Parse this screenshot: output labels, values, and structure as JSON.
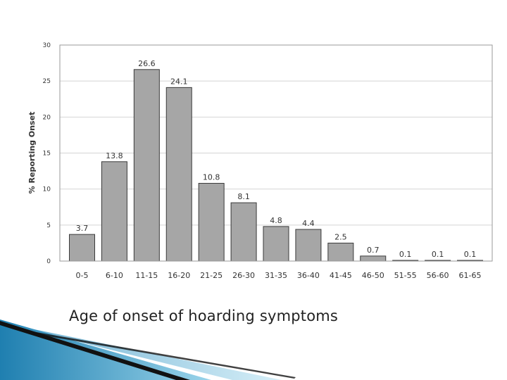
{
  "caption": "Age of onset of hoarding symptoms",
  "chart_data": {
    "type": "bar",
    "title": "",
    "xlabel": "",
    "ylabel": "% Reporting Onset",
    "ylim": [
      0,
      30
    ],
    "yticks": [
      "0",
      "5",
      "10",
      "15",
      "20",
      "25",
      "30"
    ],
    "categories": [
      "0-5",
      "6-10",
      "11-15",
      "16-20",
      "21-25",
      "26-30",
      "31-35",
      "36-40",
      "41-45",
      "46-50",
      "51-55",
      "56-60",
      "61-65"
    ],
    "values": [
      3.7,
      13.8,
      26.6,
      24.1,
      10.8,
      8.1,
      4.8,
      4.4,
      2.5,
      0.7,
      0.1,
      0.1,
      0.1
    ],
    "value_labels": [
      "3.7",
      "13.8",
      "26.6",
      "24.1",
      "10.8",
      "8.1",
      "4.8",
      "4.4",
      "2.5",
      "0.7",
      "0.1",
      "0.1",
      "0.1"
    ],
    "grid": true,
    "legend": "none",
    "colors": {
      "bar_fill": "#a6a6a6",
      "bar_stroke": "#3a3a3a",
      "grid": "#d4d4d4",
      "frame": "#9a9a9a",
      "text": "#333333"
    }
  },
  "decoration": {
    "colors": {
      "blue_dark": "#1f7fb0",
      "blue_light": "#9ad4ea",
      "black_line": "#111111"
    }
  }
}
